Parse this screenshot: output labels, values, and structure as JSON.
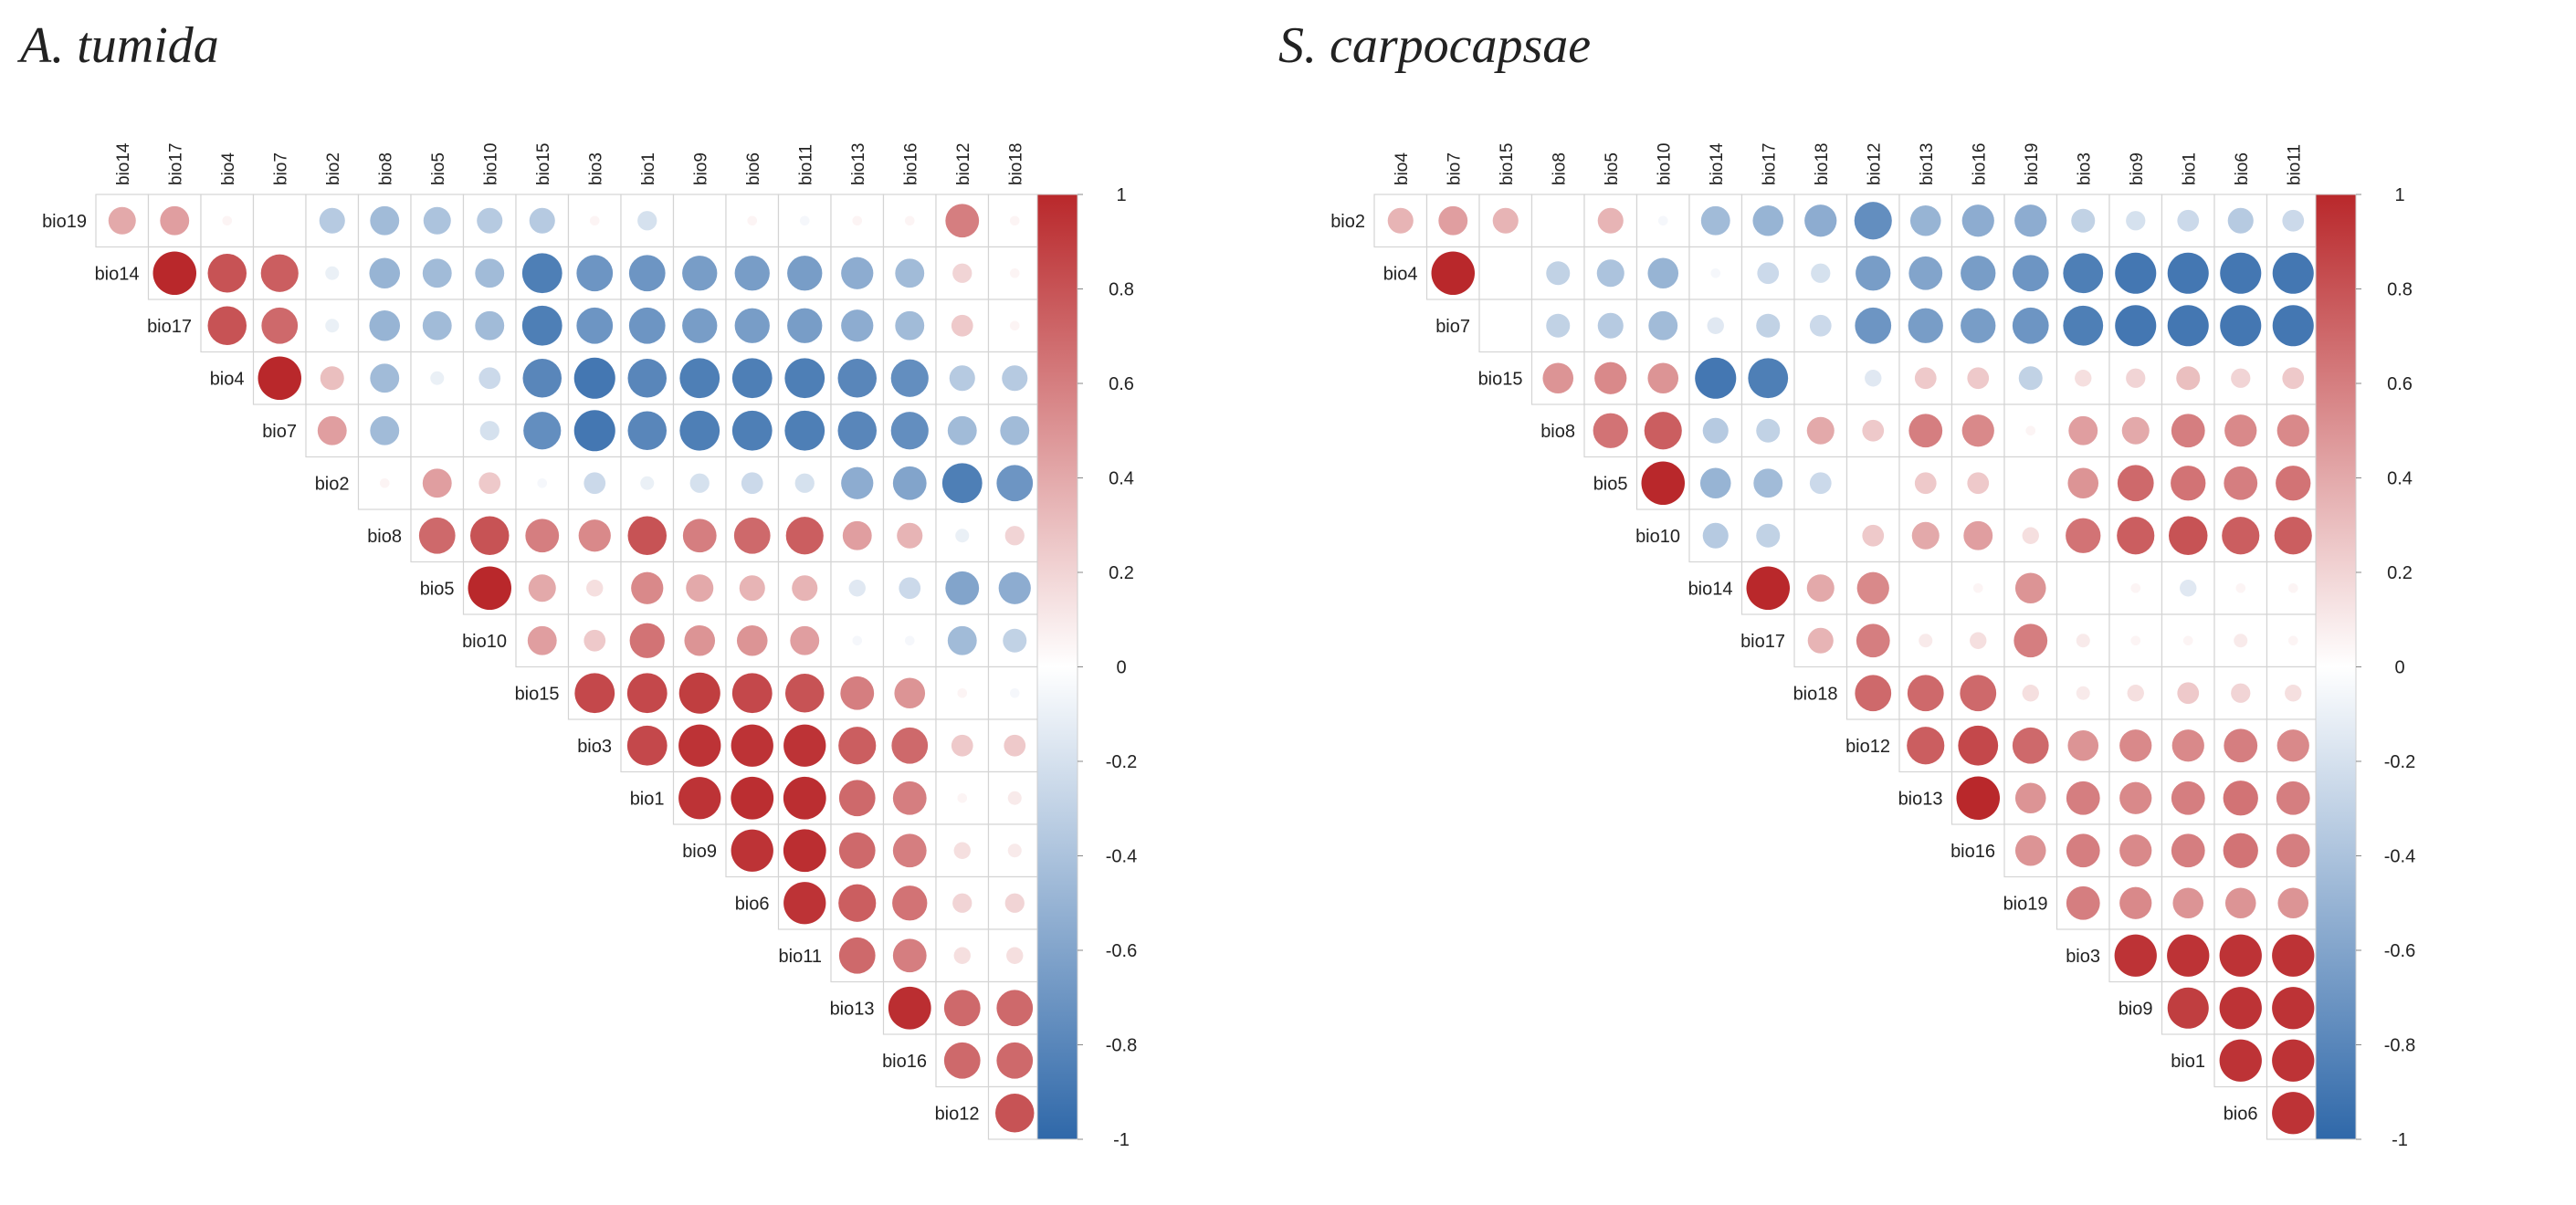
{
  "chart_data": [
    {
      "type": "heatmap",
      "subtype": "correlogram-upper-circles",
      "title": "A. tumida",
      "col_labels": [
        "bio14",
        "bio17",
        "bio4",
        "bio7",
        "bio2",
        "bio8",
        "bio5",
        "bio10",
        "bio15",
        "bio3",
        "bio1",
        "bio9",
        "bio6",
        "bio11",
        "bio13",
        "bio16",
        "bio12",
        "bio18"
      ],
      "row_labels": [
        "bio19",
        "bio14",
        "bio17",
        "bio4",
        "bio7",
        "bio2",
        "bio8",
        "bio5",
        "bio10",
        "bio15",
        "bio3",
        "bio1",
        "bio9",
        "bio6",
        "bio11",
        "bio13",
        "bio16",
        "bio12"
      ],
      "values": [
        [
          0.4,
          0.45,
          0.05,
          0,
          -0.35,
          -0.45,
          -0.4,
          -0.35,
          -0.35,
          0.05,
          -0.2,
          0,
          0.05,
          -0.05,
          0.05,
          0.05,
          0.6,
          0.05
        ],
        [
          null,
          1,
          0.8,
          0.75,
          -0.1,
          -0.5,
          -0.45,
          -0.45,
          -0.85,
          -0.7,
          -0.7,
          -0.65,
          -0.65,
          -0.65,
          -0.55,
          -0.45,
          0.2,
          0.05
        ],
        [
          null,
          null,
          0.8,
          0.7,
          -0.1,
          -0.5,
          -0.45,
          -0.45,
          -0.85,
          -0.7,
          -0.7,
          -0.65,
          -0.65,
          -0.65,
          -0.55,
          -0.45,
          0.25,
          0.05
        ],
        [
          null,
          null,
          null,
          1,
          0.3,
          -0.45,
          -0.1,
          -0.25,
          -0.8,
          -0.9,
          -0.8,
          -0.85,
          -0.85,
          -0.85,
          -0.8,
          -0.75,
          -0.35,
          -0.35
        ],
        [
          null,
          null,
          null,
          null,
          0.45,
          -0.45,
          0,
          -0.2,
          -0.75,
          -0.9,
          -0.8,
          -0.85,
          -0.85,
          -0.85,
          -0.8,
          -0.75,
          -0.45,
          -0.45
        ],
        [
          null,
          null,
          null,
          null,
          null,
          0.05,
          0.45,
          0.25,
          -0.05,
          -0.25,
          -0.1,
          -0.2,
          -0.25,
          -0.2,
          -0.55,
          -0.6,
          -0.85,
          -0.7
        ],
        [
          null,
          null,
          null,
          null,
          null,
          null,
          0.7,
          0.8,
          0.6,
          0.55,
          0.8,
          0.6,
          0.7,
          0.75,
          0.45,
          0.35,
          -0.1,
          0.2
        ],
        [
          null,
          null,
          null,
          null,
          null,
          null,
          null,
          1,
          0.4,
          0.15,
          0.55,
          0.4,
          0.35,
          0.35,
          -0.15,
          -0.25,
          -0.6,
          -0.55
        ],
        [
          null,
          null,
          null,
          null,
          null,
          null,
          null,
          null,
          0.45,
          0.25,
          0.65,
          0.5,
          0.5,
          0.45,
          -0.05,
          -0.05,
          -0.45,
          -0.3
        ],
        [
          null,
          null,
          null,
          null,
          null,
          null,
          null,
          null,
          null,
          0.85,
          0.85,
          0.9,
          0.85,
          0.8,
          0.6,
          0.5,
          0.05,
          -0.05
        ],
        [
          null,
          null,
          null,
          null,
          null,
          null,
          null,
          null,
          null,
          null,
          0.85,
          0.95,
          0.95,
          0.95,
          0.75,
          0.7,
          0.25,
          0.25
        ],
        [
          null,
          null,
          null,
          null,
          null,
          null,
          null,
          null,
          null,
          null,
          null,
          0.95,
          0.97,
          0.97,
          0.7,
          0.6,
          0.05,
          0.1
        ],
        [
          null,
          null,
          null,
          null,
          null,
          null,
          null,
          null,
          null,
          null,
          null,
          null,
          0.95,
          0.97,
          0.7,
          0.6,
          0.15,
          0.1
        ],
        [
          null,
          null,
          null,
          null,
          null,
          null,
          null,
          null,
          null,
          null,
          null,
          null,
          null,
          0.95,
          0.75,
          0.65,
          0.2,
          0.2
        ],
        [
          null,
          null,
          null,
          null,
          null,
          null,
          null,
          null,
          null,
          null,
          null,
          null,
          null,
          null,
          0.7,
          0.6,
          0.15,
          0.15
        ],
        [
          null,
          null,
          null,
          null,
          null,
          null,
          null,
          null,
          null,
          null,
          null,
          null,
          null,
          null,
          null,
          0.97,
          0.7,
          0.7
        ],
        [
          null,
          null,
          null,
          null,
          null,
          null,
          null,
          null,
          null,
          null,
          null,
          null,
          null,
          null,
          null,
          null,
          0.7,
          0.7
        ],
        [
          null,
          null,
          null,
          null,
          null,
          null,
          null,
          null,
          null,
          null,
          null,
          null,
          null,
          null,
          null,
          null,
          null,
          0.8
        ]
      ],
      "colorbar": {
        "range": [
          -1,
          1
        ],
        "tick_labels": [
          "1",
          "0.8",
          "0.6",
          "0.4",
          "0.2",
          "0",
          "-0.2",
          "-0.4",
          "-0.6",
          "-0.8",
          "-1"
        ]
      },
      "colors": {
        "low": "#2f68a9",
        "mid": "#ffffff",
        "high": "#b9282b"
      }
    },
    {
      "type": "heatmap",
      "subtype": "correlogram-upper-circles",
      "title": "S. carpocapsae",
      "col_labels": [
        "bio4",
        "bio7",
        "bio15",
        "bio8",
        "bio5",
        "bio10",
        "bio14",
        "bio17",
        "bio18",
        "bio12",
        "bio13",
        "bio16",
        "bio19",
        "bio3",
        "bio9",
        "bio1",
        "bio6",
        "bio11"
      ],
      "row_labels": [
        "bio2",
        "bio4",
        "bio7",
        "bio15",
        "bio8",
        "bio5",
        "bio10",
        "bio14",
        "bio17",
        "bio18",
        "bio12",
        "bio13",
        "bio16",
        "bio19",
        "bio3",
        "bio9",
        "bio1",
        "bio6"
      ],
      "values": [
        [
          0.35,
          0.45,
          0.35,
          0,
          0.35,
          -0.05,
          -0.45,
          -0.5,
          -0.55,
          -0.75,
          -0.5,
          -0.55,
          -0.55,
          -0.3,
          -0.2,
          -0.25,
          -0.35,
          -0.25
        ],
        [
          null,
          1,
          0,
          -0.3,
          -0.4,
          -0.5,
          -0.05,
          -0.25,
          -0.2,
          -0.65,
          -0.6,
          -0.65,
          -0.7,
          -0.85,
          -0.9,
          -0.9,
          -0.9,
          -0.9
        ],
        [
          null,
          null,
          0,
          -0.3,
          -0.35,
          -0.45,
          -0.15,
          -0.3,
          -0.25,
          -0.7,
          -0.65,
          -0.65,
          -0.7,
          -0.85,
          -0.9,
          -0.9,
          -0.9,
          -0.9
        ],
        [
          null,
          null,
          null,
          0.5,
          0.55,
          0.5,
          -0.9,
          -0.85,
          0,
          -0.15,
          0.25,
          0.25,
          -0.3,
          0.15,
          0.2,
          0.3,
          0.2,
          0.25
        ],
        [
          null,
          null,
          null,
          null,
          0.65,
          0.75,
          -0.35,
          -0.3,
          0.4,
          0.25,
          0.6,
          0.55,
          0.05,
          0.45,
          0.4,
          0.6,
          0.55,
          0.55
        ],
        [
          null,
          null,
          null,
          null,
          null,
          1,
          -0.5,
          -0.45,
          -0.25,
          0,
          0.25,
          0.25,
          0,
          0.5,
          0.7,
          0.65,
          0.6,
          0.65
        ],
        [
          null,
          null,
          null,
          null,
          null,
          null,
          -0.35,
          -0.3,
          0,
          0.25,
          0.4,
          0.45,
          0.15,
          0.65,
          0.75,
          0.8,
          0.75,
          0.75
        ],
        [
          null,
          null,
          null,
          null,
          null,
          null,
          null,
          1,
          0.4,
          0.55,
          0,
          0.05,
          0.5,
          0,
          0.05,
          -0.15,
          0.05,
          0.05
        ],
        [
          null,
          null,
          null,
          null,
          null,
          null,
          null,
          null,
          0.35,
          0.6,
          0.1,
          0.15,
          0.6,
          0.1,
          0.05,
          0.05,
          0.1,
          0.05
        ],
        [
          null,
          null,
          null,
          null,
          null,
          null,
          null,
          null,
          null,
          0.7,
          0.7,
          0.7,
          0.15,
          0.1,
          0.15,
          0.25,
          0.2,
          0.15
        ],
        [
          null,
          null,
          null,
          null,
          null,
          null,
          null,
          null,
          null,
          null,
          0.75,
          0.85,
          0.7,
          0.5,
          0.55,
          0.55,
          0.6,
          0.55
        ],
        [
          null,
          null,
          null,
          null,
          null,
          null,
          null,
          null,
          null,
          null,
          null,
          1,
          0.5,
          0.6,
          0.55,
          0.6,
          0.65,
          0.6
        ],
        [
          null,
          null,
          null,
          null,
          null,
          null,
          null,
          null,
          null,
          null,
          null,
          null,
          0.5,
          0.6,
          0.55,
          0.6,
          0.65,
          0.6
        ],
        [
          null,
          null,
          null,
          null,
          null,
          null,
          null,
          null,
          null,
          null,
          null,
          null,
          null,
          0.6,
          0.55,
          0.5,
          0.5,
          0.5
        ],
        [
          null,
          null,
          null,
          null,
          null,
          null,
          null,
          null,
          null,
          null,
          null,
          null,
          null,
          null,
          0.95,
          0.95,
          0.95,
          0.95
        ],
        [
          null,
          null,
          null,
          null,
          null,
          null,
          null,
          null,
          null,
          null,
          null,
          null,
          null,
          null,
          null,
          0.9,
          0.95,
          0.95
        ],
        [
          null,
          null,
          null,
          null,
          null,
          null,
          null,
          null,
          null,
          null,
          null,
          null,
          null,
          null,
          null,
          null,
          0.95,
          0.95
        ],
        [
          null,
          null,
          null,
          null,
          null,
          null,
          null,
          null,
          null,
          null,
          null,
          null,
          null,
          null,
          null,
          null,
          null,
          0.95
        ]
      ],
      "colorbar": {
        "range": [
          -1,
          1
        ],
        "tick_labels": [
          "1",
          "0.8",
          "0.6",
          "0.4",
          "0.2",
          "0",
          "-0.2",
          "-0.4",
          "-0.6",
          "-0.8",
          "-1"
        ]
      },
      "colors": {
        "low": "#2f68a9",
        "mid": "#ffffff",
        "high": "#b9282b"
      }
    }
  ]
}
